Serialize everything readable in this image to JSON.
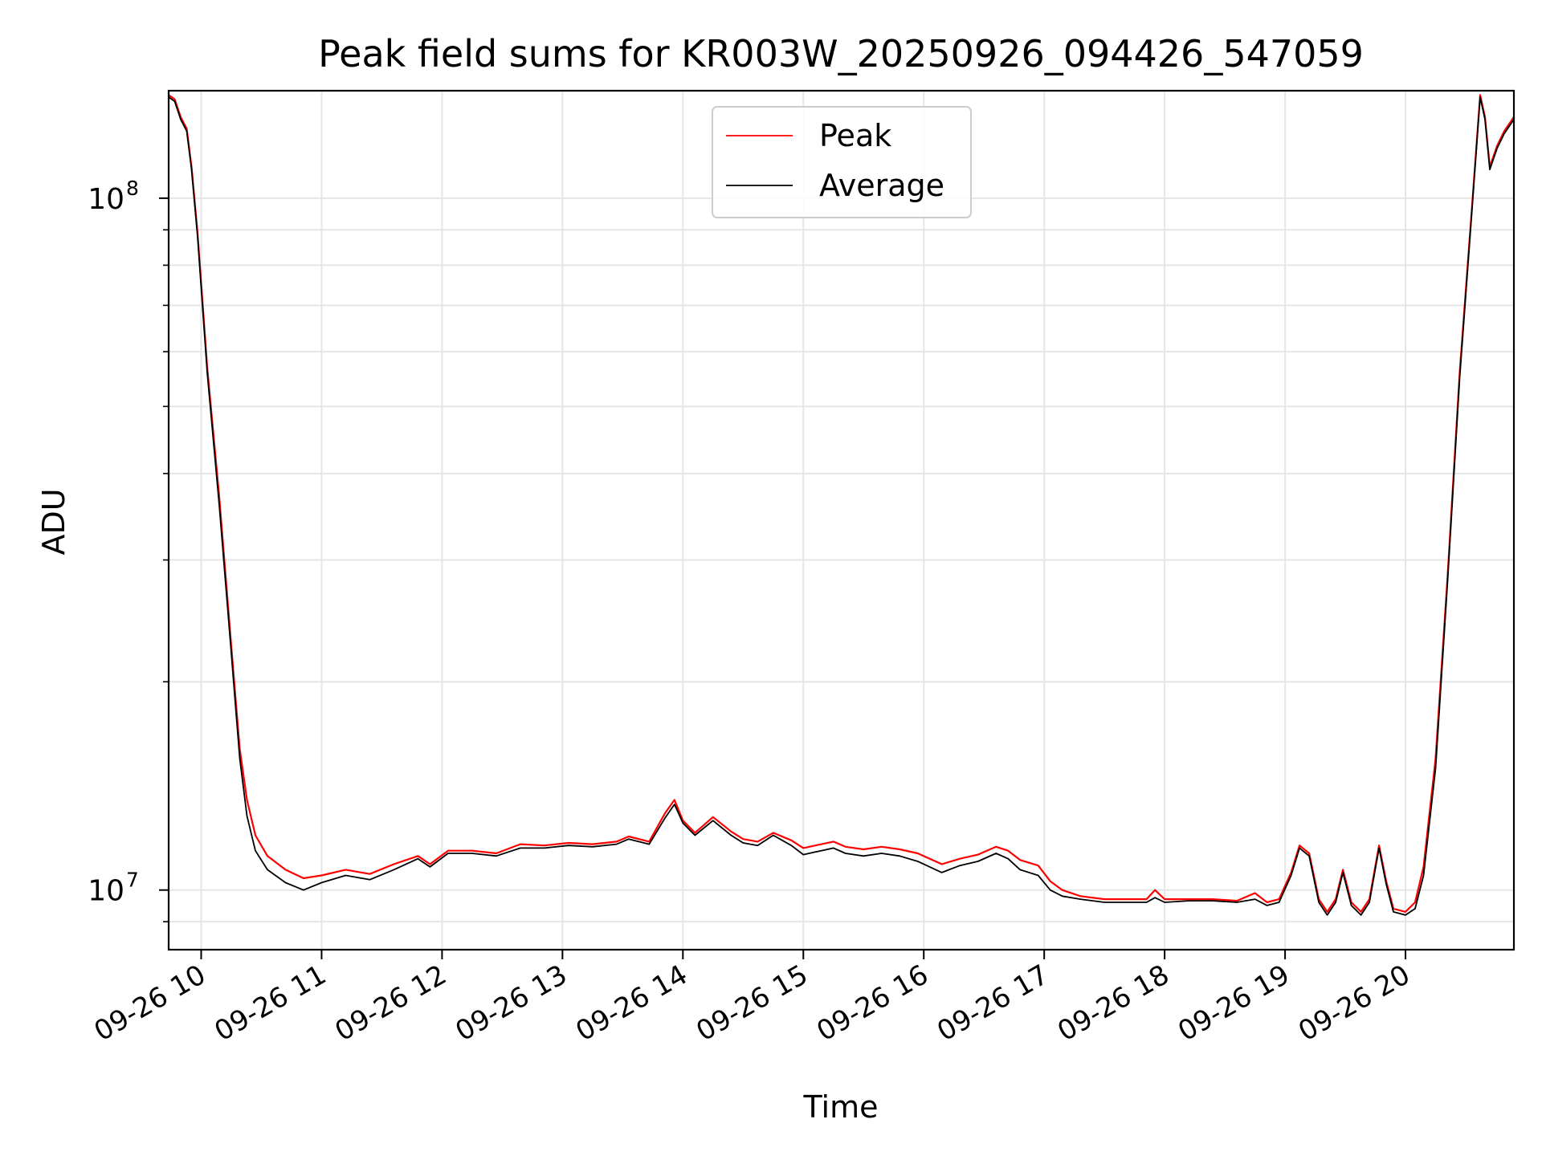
{
  "chart_data": {
    "type": "line",
    "title": "Peak field sums for KR003W_20250926_094426_547059",
    "xlabel": "Time",
    "ylabel": "ADU",
    "yscale": "log",
    "xlim": [
      9.73,
      20.9
    ],
    "ylim": [
      8200000,
      143000000
    ],
    "x_ticks": [
      {
        "x": 10,
        "label": "09-26 10"
      },
      {
        "x": 11,
        "label": "09-26 11"
      },
      {
        "x": 12,
        "label": "09-26 12"
      },
      {
        "x": 13,
        "label": "09-26 13"
      },
      {
        "x": 14,
        "label": "09-26 14"
      },
      {
        "x": 15,
        "label": "09-26 15"
      },
      {
        "x": 16,
        "label": "09-26 16"
      },
      {
        "x": 17,
        "label": "09-26 17"
      },
      {
        "x": 18,
        "label": "09-26 18"
      },
      {
        "x": 19,
        "label": "09-26 19"
      },
      {
        "x": 20,
        "label": "09-26 20"
      }
    ],
    "y_major_ticks": [
      {
        "y": 10000000,
        "base": "10",
        "exp": "7"
      },
      {
        "y": 100000000,
        "base": "10",
        "exp": "8"
      }
    ],
    "y_minor_ticks": [
      9000000,
      20000000,
      30000000,
      40000000,
      50000000,
      60000000,
      70000000,
      80000000,
      90000000
    ],
    "grid": true,
    "legend": {
      "position": "top-center",
      "entries": [
        {
          "name": "Peak",
          "color": "#ff0000"
        },
        {
          "name": "Average",
          "color": "#000000"
        }
      ]
    },
    "series": [
      {
        "name": "Average",
        "color": "#000000",
        "points": [
          [
            9.73,
            140000000
          ],
          [
            9.78,
            138000000
          ],
          [
            9.83,
            130000000
          ],
          [
            9.88,
            125000000
          ],
          [
            9.92,
            110000000
          ],
          [
            9.97,
            88000000
          ],
          [
            10.05,
            56000000
          ],
          [
            10.15,
            36000000
          ],
          [
            10.25,
            22000000
          ],
          [
            10.32,
            15500000
          ],
          [
            10.38,
            12800000
          ],
          [
            10.45,
            11400000
          ],
          [
            10.55,
            10700000
          ],
          [
            10.7,
            10250000
          ],
          [
            10.85,
            10000000
          ],
          [
            11.0,
            10250000
          ],
          [
            11.2,
            10500000
          ],
          [
            11.4,
            10350000
          ],
          [
            11.6,
            10700000
          ],
          [
            11.8,
            11100000
          ],
          [
            11.9,
            10800000
          ],
          [
            12.05,
            11300000
          ],
          [
            12.25,
            11300000
          ],
          [
            12.45,
            11200000
          ],
          [
            12.65,
            11500000
          ],
          [
            12.85,
            11500000
          ],
          [
            13.05,
            11600000
          ],
          [
            13.25,
            11550000
          ],
          [
            13.45,
            11650000
          ],
          [
            13.55,
            11850000
          ],
          [
            13.72,
            11650000
          ],
          [
            13.85,
            12700000
          ],
          [
            13.93,
            13300000
          ],
          [
            14.0,
            12500000
          ],
          [
            14.1,
            12000000
          ],
          [
            14.25,
            12600000
          ],
          [
            14.4,
            12000000
          ],
          [
            14.5,
            11700000
          ],
          [
            14.62,
            11600000
          ],
          [
            14.75,
            12000000
          ],
          [
            14.9,
            11600000
          ],
          [
            15.0,
            11250000
          ],
          [
            15.1,
            11350000
          ],
          [
            15.25,
            11500000
          ],
          [
            15.35,
            11300000
          ],
          [
            15.5,
            11200000
          ],
          [
            15.65,
            11300000
          ],
          [
            15.8,
            11200000
          ],
          [
            15.95,
            11000000
          ],
          [
            16.05,
            10800000
          ],
          [
            16.15,
            10600000
          ],
          [
            16.3,
            10850000
          ],
          [
            16.45,
            11000000
          ],
          [
            16.6,
            11300000
          ],
          [
            16.7,
            11100000
          ],
          [
            16.8,
            10700000
          ],
          [
            16.95,
            10500000
          ],
          [
            17.05,
            10000000
          ],
          [
            17.15,
            9800000
          ],
          [
            17.3,
            9700000
          ],
          [
            17.5,
            9600000
          ],
          [
            17.7,
            9600000
          ],
          [
            17.85,
            9600000
          ],
          [
            17.92,
            9750000
          ],
          [
            18.0,
            9600000
          ],
          [
            18.2,
            9650000
          ],
          [
            18.4,
            9650000
          ],
          [
            18.6,
            9600000
          ],
          [
            18.75,
            9700000
          ],
          [
            18.85,
            9500000
          ],
          [
            18.95,
            9600000
          ],
          [
            19.05,
            10500000
          ],
          [
            19.12,
            11500000
          ],
          [
            19.2,
            11200000
          ],
          [
            19.28,
            9600000
          ],
          [
            19.35,
            9200000
          ],
          [
            19.42,
            9600000
          ],
          [
            19.48,
            10600000
          ],
          [
            19.55,
            9500000
          ],
          [
            19.63,
            9200000
          ],
          [
            19.7,
            9600000
          ],
          [
            19.78,
            11500000
          ],
          [
            19.84,
            10200000
          ],
          [
            19.9,
            9300000
          ],
          [
            20.0,
            9200000
          ],
          [
            20.08,
            9400000
          ],
          [
            20.15,
            10500000
          ],
          [
            20.25,
            15000000
          ],
          [
            20.35,
            28000000
          ],
          [
            20.45,
            55000000
          ],
          [
            20.55,
            95000000
          ],
          [
            20.62,
            140000000
          ],
          [
            20.66,
            130000000
          ],
          [
            20.7,
            110000000
          ],
          [
            20.76,
            118000000
          ],
          [
            20.82,
            124000000
          ],
          [
            20.9,
            130000000
          ]
        ]
      },
      {
        "name": "Peak",
        "color": "#ff0000",
        "points": [
          [
            9.73,
            141000000
          ],
          [
            9.78,
            139000000
          ],
          [
            9.83,
            131000000
          ],
          [
            9.88,
            126000000
          ],
          [
            9.92,
            111000000
          ],
          [
            9.97,
            89000000
          ],
          [
            10.05,
            57000000
          ],
          [
            10.15,
            37000000
          ],
          [
            10.25,
            22500000
          ],
          [
            10.32,
            16000000
          ],
          [
            10.38,
            13500000
          ],
          [
            10.45,
            12000000
          ],
          [
            10.55,
            11200000
          ],
          [
            10.7,
            10700000
          ],
          [
            10.85,
            10400000
          ],
          [
            11.0,
            10500000
          ],
          [
            11.2,
            10700000
          ],
          [
            11.4,
            10550000
          ],
          [
            11.6,
            10900000
          ],
          [
            11.8,
            11200000
          ],
          [
            11.9,
            10900000
          ],
          [
            12.05,
            11400000
          ],
          [
            12.25,
            11400000
          ],
          [
            12.45,
            11300000
          ],
          [
            12.65,
            11650000
          ],
          [
            12.85,
            11600000
          ],
          [
            13.05,
            11700000
          ],
          [
            13.25,
            11650000
          ],
          [
            13.45,
            11750000
          ],
          [
            13.55,
            11950000
          ],
          [
            13.72,
            11750000
          ],
          [
            13.85,
            12900000
          ],
          [
            13.93,
            13500000
          ],
          [
            14.0,
            12600000
          ],
          [
            14.1,
            12100000
          ],
          [
            14.25,
            12750000
          ],
          [
            14.4,
            12150000
          ],
          [
            14.5,
            11850000
          ],
          [
            14.62,
            11750000
          ],
          [
            14.75,
            12100000
          ],
          [
            14.9,
            11800000
          ],
          [
            15.0,
            11500000
          ],
          [
            15.1,
            11600000
          ],
          [
            15.25,
            11750000
          ],
          [
            15.35,
            11550000
          ],
          [
            15.5,
            11450000
          ],
          [
            15.65,
            11550000
          ],
          [
            15.8,
            11450000
          ],
          [
            15.95,
            11300000
          ],
          [
            16.05,
            11100000
          ],
          [
            16.15,
            10900000
          ],
          [
            16.3,
            11100000
          ],
          [
            16.45,
            11250000
          ],
          [
            16.6,
            11550000
          ],
          [
            16.7,
            11400000
          ],
          [
            16.8,
            11050000
          ],
          [
            16.95,
            10850000
          ],
          [
            17.05,
            10300000
          ],
          [
            17.15,
            10000000
          ],
          [
            17.3,
            9800000
          ],
          [
            17.5,
            9700000
          ],
          [
            17.7,
            9700000
          ],
          [
            17.85,
            9700000
          ],
          [
            17.92,
            10000000
          ],
          [
            18.0,
            9700000
          ],
          [
            18.2,
            9700000
          ],
          [
            18.4,
            9700000
          ],
          [
            18.6,
            9650000
          ],
          [
            18.75,
            9900000
          ],
          [
            18.85,
            9600000
          ],
          [
            18.95,
            9700000
          ],
          [
            19.05,
            10600000
          ],
          [
            19.12,
            11600000
          ],
          [
            19.2,
            11300000
          ],
          [
            19.28,
            9700000
          ],
          [
            19.35,
            9300000
          ],
          [
            19.42,
            9700000
          ],
          [
            19.48,
            10700000
          ],
          [
            19.55,
            9600000
          ],
          [
            19.63,
            9300000
          ],
          [
            19.7,
            9700000
          ],
          [
            19.78,
            11600000
          ],
          [
            19.84,
            10300000
          ],
          [
            19.9,
            9400000
          ],
          [
            20.0,
            9300000
          ],
          [
            20.08,
            9600000
          ],
          [
            20.15,
            10800000
          ],
          [
            20.25,
            15500000
          ],
          [
            20.35,
            28500000
          ],
          [
            20.45,
            56000000
          ],
          [
            20.55,
            96000000
          ],
          [
            20.62,
            141000000
          ],
          [
            20.66,
            131000000
          ],
          [
            20.7,
            111000000
          ],
          [
            20.76,
            119000000
          ],
          [
            20.82,
            125000000
          ],
          [
            20.9,
            131000000
          ]
        ]
      }
    ]
  }
}
